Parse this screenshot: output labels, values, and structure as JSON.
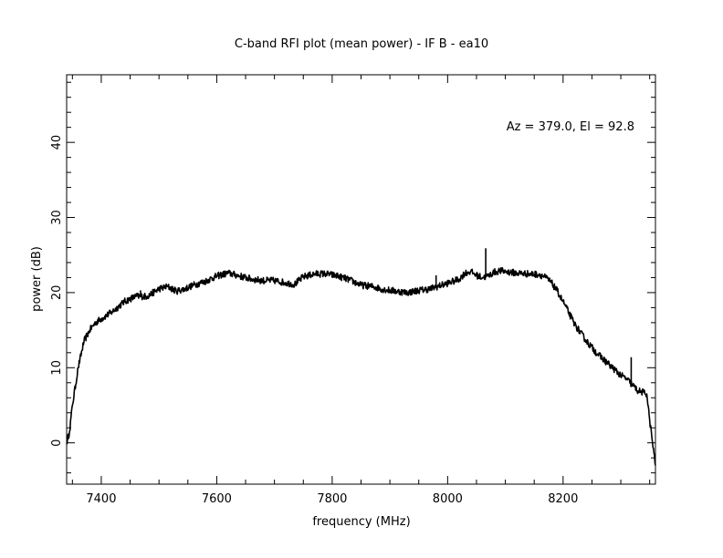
{
  "chart_data": {
    "type": "line",
    "title": "C-band RFI plot (mean power) - IF B - ea10",
    "xlabel": "frequency (MHz)",
    "ylabel": "power (dB)",
    "annotation": "Az = 379.0, El = 92.8",
    "xlim": [
      7340,
      8360
    ],
    "ylim": [
      -5.5,
      49
    ],
    "x_ticks": [
      7400,
      7600,
      7800,
      8000,
      8200
    ],
    "y_ticks": [
      0,
      10,
      20,
      30,
      40
    ],
    "grid": false,
    "line_color": "#000000",
    "series": [
      {
        "x": [
          7340,
          7345,
          7350,
          7360,
          7370,
          7380,
          7390,
          7400,
          7420,
          7440,
          7460,
          7480,
          7500,
          7515,
          7530,
          7545,
          7560,
          7580,
          7600,
          7620,
          7640,
          7660,
          7680,
          7700,
          7720,
          7735,
          7750,
          7770,
          7790,
          7810,
          7830,
          7850,
          7870,
          7890,
          7910,
          7930,
          7950,
          7970,
          7990,
          8010,
          8020,
          8030,
          8040,
          8050,
          8060,
          8070,
          8080,
          8090,
          8100,
          8120,
          8140,
          8160,
          8170,
          8180,
          8190,
          8200,
          8210,
          8220,
          8240,
          8260,
          8280,
          8300,
          8310,
          8320,
          8330,
          8340,
          8345,
          8350,
          8355,
          8360
        ],
        "y": [
          0,
          1.5,
          5,
          10,
          13.5,
          15,
          16,
          16.5,
          17.5,
          18.8,
          19.5,
          19.5,
          20.5,
          20.8,
          20.2,
          20.5,
          21,
          21.5,
          22.2,
          22.6,
          22.2,
          21.8,
          21.6,
          21.6,
          21.3,
          21.1,
          22.1,
          22.5,
          22.5,
          22.2,
          21.7,
          21,
          20.8,
          20.4,
          20.2,
          20,
          20.3,
          20.5,
          21,
          21.5,
          21.8,
          22.6,
          22.8,
          22.3,
          22,
          22.2,
          22.7,
          22.9,
          22.8,
          22.6,
          22.5,
          22.4,
          22,
          21.3,
          20.2,
          18.8,
          17.3,
          15.8,
          13.6,
          11.8,
          10.4,
          9,
          8.5,
          7.7,
          6.9,
          6.7,
          6.5,
          3,
          0,
          -3
        ]
      }
    ],
    "spikes": [
      {
        "x": 7394,
        "y": 16.5
      },
      {
        "x": 7468,
        "y": 20.3
      },
      {
        "x": 7980,
        "y": 22.3
      },
      {
        "x": 8066,
        "y": 25.9
      },
      {
        "x": 8318,
        "y": 11.4
      }
    ]
  }
}
